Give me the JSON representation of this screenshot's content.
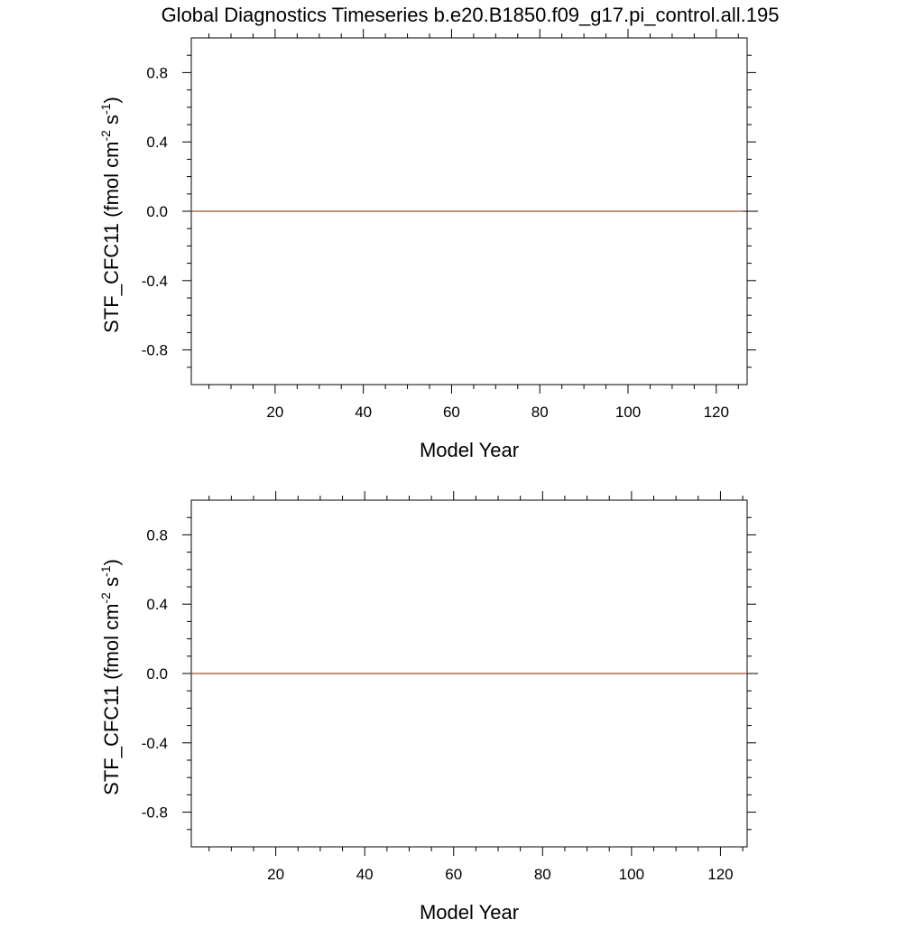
{
  "title": "Global Diagnostics Timeseries b.e20.B1850.f09_g17.pi_control.all.195",
  "chart_data": [
    {
      "type": "line",
      "xlabel": "Model Year",
      "ylabel_base": "STF_CFC11  (fmol cm",
      "ylabel_sup1": "-2",
      "ylabel_mid": " s",
      "ylabel_sup2": "-1",
      "ylabel_end": ")",
      "xlim": [
        1,
        127
      ],
      "ylim": [
        -1,
        1
      ],
      "xticks": [
        20,
        40,
        60,
        80,
        100,
        120
      ],
      "xtick_labels": [
        "20",
        "40",
        "60",
        "80",
        "100",
        "120"
      ],
      "yticks": [
        0.8,
        0.4,
        0.0,
        -0.4,
        -0.8
      ],
      "ytick_labels": [
        "0.8",
        "0.4",
        "0.0",
        "-0.4",
        "-0.8"
      ],
      "zero_line": true,
      "grid": false,
      "series": [
        {
          "color": "#a0522d",
          "x": [
            1,
            126
          ],
          "y": [
            0,
            0
          ]
        }
      ]
    },
    {
      "type": "line",
      "xlabel": "Model Year",
      "ylabel_base": "STF_CFC11  (fmol cm",
      "ylabel_sup1": "-2",
      "ylabel_mid": " s",
      "ylabel_sup2": "-1",
      "ylabel_end": ")",
      "xlim": [
        1,
        126
      ],
      "ylim": [
        -1,
        1
      ],
      "xticks": [
        20,
        40,
        60,
        80,
        100,
        120
      ],
      "xtick_labels": [
        "20",
        "40",
        "60",
        "80",
        "100",
        "120"
      ],
      "yticks": [
        0.8,
        0.4,
        0.0,
        -0.4,
        -0.8
      ],
      "ytick_labels": [
        "0.8",
        "0.4",
        "0.0",
        "-0.4",
        "-0.8"
      ],
      "zero_line": true,
      "grid": false,
      "series": [
        {
          "color": "#a0522d",
          "x": [
            1,
            126
          ],
          "y": [
            0,
            0
          ]
        }
      ]
    }
  ]
}
